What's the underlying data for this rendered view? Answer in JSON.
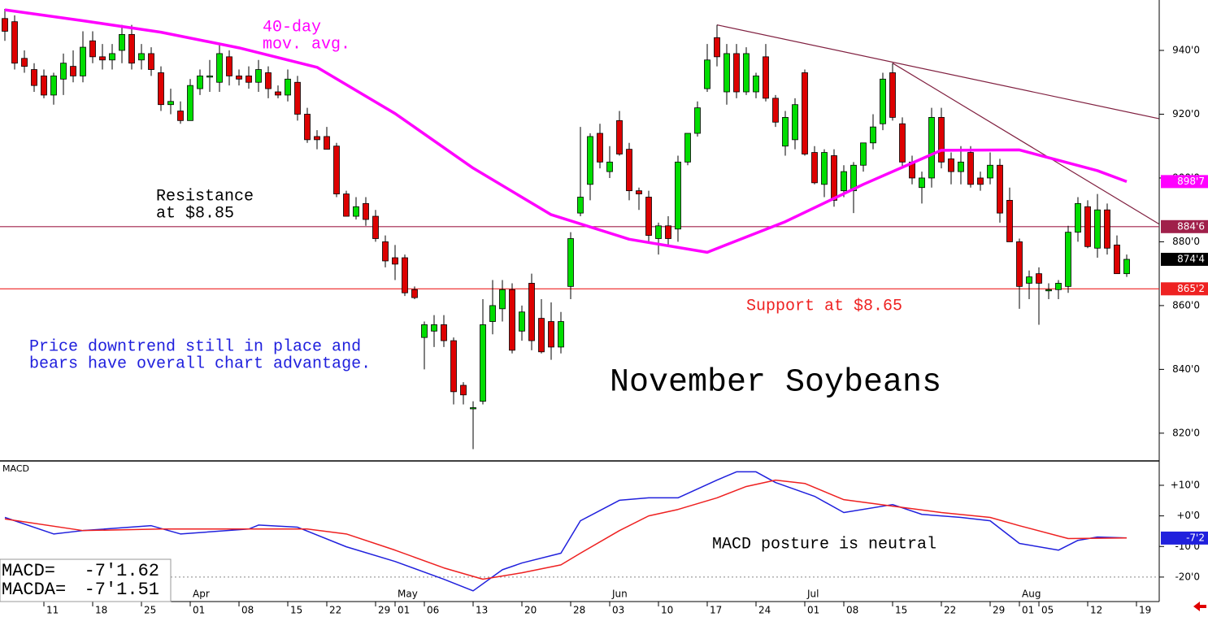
{
  "chart_data": [
    {
      "type": "candlestick",
      "title": "November Soybeans",
      "categories": [
        null,
        null,
        null,
        null,
        null,
        "11",
        null,
        null,
        null,
        null,
        "18",
        null,
        null,
        null,
        null,
        "25",
        null,
        null,
        null,
        null,
        "01",
        null,
        null,
        null,
        null,
        "08",
        null,
        null,
        null,
        null,
        "15",
        null,
        null,
        null,
        "22",
        null,
        null,
        null,
        null,
        "29",
        null,
        "01",
        null,
        null,
        "06",
        null,
        null,
        null,
        null,
        "13",
        null,
        null,
        null,
        null,
        "20",
        null,
        null,
        null,
        null,
        "28",
        null,
        null,
        null,
        "03",
        null,
        null,
        null,
        null,
        "10",
        null,
        null,
        null,
        null,
        "17",
        null,
        null,
        null,
        null,
        "24",
        null,
        null,
        null,
        null,
        "01",
        null,
        null,
        null,
        "08",
        null,
        null,
        null,
        null,
        "15",
        null,
        null,
        null,
        null,
        "22",
        null,
        null,
        null,
        null,
        "29",
        null,
        null,
        "01",
        null,
        "05",
        null,
        null,
        null,
        null,
        "12",
        null,
        null,
        null,
        null,
        "19"
      ],
      "months": [
        null,
        null,
        null,
        null,
        null,
        null,
        null,
        null,
        null,
        null,
        null,
        null,
        null,
        null,
        null,
        null,
        null,
        null,
        null,
        null,
        "Apr",
        null,
        null,
        null,
        null,
        null,
        null,
        null,
        null,
        null,
        null,
        null,
        null,
        null,
        null,
        null,
        null,
        null,
        null,
        null,
        null,
        "May",
        null,
        null,
        null,
        null,
        null,
        null,
        null,
        null,
        null,
        null,
        null,
        null,
        null,
        null,
        null,
        null,
        null,
        null,
        null,
        null,
        null,
        "Jun",
        null,
        null,
        null,
        null,
        null,
        null,
        null,
        null,
        null,
        null,
        null,
        null,
        null,
        null,
        null,
        null,
        null,
        null,
        null,
        "Jul",
        null,
        null,
        null,
        null,
        null,
        null,
        null,
        null,
        null,
        null,
        null,
        null,
        null,
        null,
        null,
        null,
        null,
        null,
        null,
        null,
        null,
        "Aug",
        null,
        null,
        null,
        null,
        null,
        null,
        null,
        null,
        null,
        null,
        null,
        null
      ],
      "open": [
        950,
        949,
        937.5,
        934,
        932,
        926,
        931,
        935,
        932,
        943,
        938,
        937,
        940,
        945,
        937,
        939,
        933,
        923,
        921,
        918,
        928,
        932,
        930,
        938,
        932,
        932,
        930,
        933,
        927,
        926,
        930,
        920,
        913,
        913,
        910,
        895,
        888,
        892,
        888,
        880,
        875,
        875,
        865,
        850,
        852,
        854,
        849,
        835,
        828,
        830,
        855,
        859,
        865,
        852,
        867,
        856,
        855,
        847,
        866,
        889,
        898,
        914,
        902,
        918,
        909,
        896,
        894,
        881,
        885,
        884,
        905,
        914,
        928,
        944,
        927,
        939,
        927,
        927,
        938,
        925,
        910,
        912,
        933,
        908,
        898,
        907,
        896,
        896,
        904,
        911,
        917,
        933,
        917,
        905,
        897,
        900,
        919,
        906,
        902,
        908,
        900,
        900,
        904,
        893,
        880,
        867,
        870,
        865,
        865,
        866,
        883,
        891,
        878,
        890,
        879,
        870,
        null,
        null
      ],
      "high": [
        953,
        951,
        940,
        936,
        934,
        933,
        939,
        940,
        946,
        946,
        942,
        942,
        948,
        948,
        942,
        941,
        935,
        928,
        924,
        931,
        934,
        937,
        942,
        940,
        934,
        935,
        937,
        935,
        929,
        934,
        932,
        922,
        915,
        916,
        911,
        896,
        894,
        894,
        890,
        882,
        879,
        876,
        866,
        855,
        857,
        857,
        850,
        836,
        830,
        862,
        868,
        868,
        867,
        860,
        870,
        862,
        861,
        858,
        883,
        916,
        914,
        917,
        910,
        921,
        911,
        897,
        896,
        886,
        888,
        907,
        914,
        924,
        942,
        948,
        942,
        942,
        941,
        933,
        942,
        926,
        921,
        925,
        934,
        910,
        909,
        909,
        904,
        905,
        911,
        920,
        933,
        936,
        919,
        907,
        902,
        922,
        922,
        908,
        910,
        910,
        902,
        908,
        906,
        897,
        881,
        871,
        872,
        867,
        868,
        885,
        894,
        893,
        895,
        892,
        882,
        876,
        null,
        null
      ],
      "low": [
        943,
        934,
        933,
        927,
        925,
        923,
        926,
        930,
        930,
        936,
        934,
        934,
        936,
        934,
        934,
        932,
        921,
        920,
        917,
        918,
        926,
        927,
        927,
        929,
        929,
        928,
        927,
        925,
        925,
        924,
        918,
        911,
        909,
        909,
        894,
        888,
        887,
        885,
        880,
        872,
        868,
        863,
        862,
        840,
        847,
        847,
        829,
        829,
        815,
        829,
        851,
        855,
        845,
        849,
        846,
        845,
        843,
        845,
        862,
        888,
        893,
        903,
        900,
        907,
        893,
        890,
        880,
        876,
        879,
        880,
        904,
        913,
        927,
        935,
        923,
        925,
        926,
        925,
        924,
        916,
        907,
        909,
        907,
        898,
        894,
        891,
        894,
        889,
        902,
        909,
        915,
        918,
        903,
        898,
        892,
        897,
        903,
        898,
        898,
        897,
        896,
        898,
        886,
        880,
        859,
        862,
        854,
        862,
        862,
        864,
        880,
        878,
        875,
        876,
        870,
        869,
        null,
        null
      ],
      "close": [
        946,
        936,
        935,
        929,
        926,
        932,
        936,
        932,
        941,
        938,
        937,
        939,
        945,
        936,
        939,
        934,
        923,
        924,
        918,
        929,
        932,
        932,
        939,
        932,
        931,
        930,
        934,
        928,
        926,
        931,
        920,
        912,
        912,
        909,
        895,
        888,
        891,
        887,
        881,
        874,
        873,
        864,
        862.5,
        854,
        854,
        849,
        833,
        832,
        828,
        854,
        860,
        865,
        846,
        858,
        849,
        845.5,
        847,
        855,
        881,
        894,
        913,
        905,
        905,
        907.5,
        896,
        895,
        882,
        885,
        881,
        905,
        914,
        922,
        937,
        938,
        939,
        927,
        939,
        932,
        925,
        917.5,
        919,
        923,
        907.5,
        898.5,
        908,
        893,
        902,
        904,
        911,
        916,
        931,
        919,
        905,
        900,
        900,
        919,
        905,
        902,
        905,
        898,
        898,
        904,
        889,
        880,
        866,
        869,
        867,
        865,
        867,
        883,
        892,
        878.5,
        890,
        878,
        870,
        874.5,
        null,
        null
      ],
      "up_color": "#00dd00",
      "down_color": "#dd0000",
      "ylim": [
        811.3,
        955.8
      ],
      "yticks": [
        {
          "value": 820,
          "label": "820'0"
        },
        {
          "value": 840,
          "label": "840'0"
        },
        {
          "value": 860,
          "label": "860'0"
        },
        {
          "value": 880,
          "label": "880'0"
        },
        {
          "value": 900,
          "label": "900'0"
        },
        {
          "value": 920,
          "label": "920'0"
        },
        {
          "value": 940,
          "label": "940'0"
        }
      ],
      "moving_average": {
        "name": [
          "40-day",
          "mov. avg."
        ],
        "color": "#ff00ff",
        "x": [
          0,
          8,
          16,
          24,
          32,
          40,
          48,
          56,
          64,
          72,
          80,
          88,
          96,
          104,
          112,
          115
        ],
        "values": [
          952.7,
          949.3,
          945.7,
          940.8,
          934.7,
          920.2,
          903.1,
          888.5,
          880.8,
          876.7,
          886.3,
          898,
          908.7,
          908.8,
          902.3,
          898.875
        ],
        "end_label": {
          "value": 898.875,
          "label": "898'7"
        }
      },
      "levels": [
        {
          "value": 884.75,
          "label": "884'6",
          "color": "#a0204a",
          "text": [
            "Resistance",
            "at $8.85"
          ],
          "text_color": "#000000"
        },
        {
          "value": 865.25,
          "label": "865'2",
          "color": "#ee2222",
          "text": [
            "Support at $8.65"
          ],
          "text_color": "#ee2222"
        }
      ],
      "last_price": {
        "value": 874.5,
        "label": "874'4"
      },
      "trendlines": [
        {
          "x": [
            73,
            118.3
          ],
          "values": [
            948,
            918.6
          ],
          "color": "#802040"
        },
        {
          "x": [
            91,
            118.3
          ],
          "values": [
            936,
            885.6
          ],
          "color": "#802040"
        }
      ],
      "note": [
        "Price downtrend still in place and",
        "bears have overall chart advantage."
      ]
    },
    {
      "type": "line",
      "title": "MACD",
      "ylim": [
        -28,
        17.7
      ],
      "yticks": [
        {
          "value": 10,
          "label": "+10'0"
        },
        {
          "value": 0,
          "label": "+0'0"
        },
        {
          "value": -10,
          "label": "-10'0"
        },
        {
          "value": -20,
          "label": "-20'0"
        }
      ],
      "reference_line": -20,
      "series": [
        {
          "name": "MACD=",
          "readout": "-7'1.62",
          "color": "#2020dd",
          "x": [
            0,
            5,
            8,
            15,
            18,
            25,
            26,
            30,
            35,
            40,
            45,
            48,
            51,
            53,
            57,
            59,
            63,
            66,
            69,
            73,
            75,
            77,
            79,
            83,
            86,
            91,
            94,
            98,
            101,
            104,
            108,
            110,
            112,
            115
          ],
          "values": [
            -0.5,
            -5.9,
            -4.8,
            -3.2,
            -5.9,
            -4.3,
            -3,
            -3.7,
            -10.1,
            -14.9,
            -20.7,
            -24.5,
            -17.6,
            -15.4,
            -12.2,
            -1.6,
            5.1,
            5.9,
            5.9,
            11.7,
            14.4,
            14.4,
            10.9,
            6.4,
            1.1,
            3.7,
            0.5,
            -0.5,
            -1.6,
            -9,
            -11.2,
            -8,
            -6.9,
            -7.2
          ]
        },
        {
          "name": "MACDA=",
          "readout": "-7'1.51",
          "color": "#ee2020",
          "x": [
            0,
            8,
            16,
            25,
            31,
            35,
            40,
            45,
            49,
            53,
            57,
            59,
            63,
            66,
            69,
            73,
            76,
            79,
            82,
            86,
            91,
            96,
            101,
            104,
            109,
            115
          ],
          "values": [
            -1,
            -4.8,
            -4.3,
            -4.3,
            -4.3,
            -5.9,
            -11.2,
            -17,
            -20.7,
            -18.6,
            -16,
            -12.2,
            -4.8,
            0,
            2.1,
            5.9,
            9.6,
            11.7,
            10.6,
            5.3,
            3.2,
            1.1,
            -0.5,
            -3.2,
            -7.4,
            -7.2
          ]
        }
      ],
      "end_label": {
        "value": -7.25,
        "label": "-7'2"
      },
      "annotation": "MACD posture is neutral"
    }
  ]
}
